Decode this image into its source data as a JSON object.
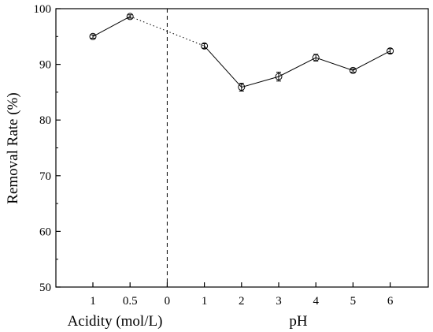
{
  "chart_data": {
    "type": "line",
    "title": "",
    "ylabel": "Removal Rate (%)",
    "ylim": [
      50,
      100
    ],
    "yticks": [
      "50",
      "60",
      "70",
      "80",
      "90",
      "100"
    ],
    "grid": false,
    "x_groups": [
      {
        "label": "Acidity (mol/L)",
        "ticks": [
          "1",
          "0.5"
        ]
      },
      {
        "label": "pH",
        "ticks": [
          "0",
          "1",
          "2",
          "3",
          "4",
          "5",
          "6"
        ]
      }
    ],
    "series": [
      {
        "group": "Acidity (mol/L)",
        "points": [
          {
            "x": "1",
            "y": 95.0,
            "err": 0.3
          },
          {
            "x": "0.5",
            "y": 98.6,
            "err": 0.3
          }
        ]
      },
      {
        "group": "pH",
        "points": [
          {
            "x": "1",
            "y": 93.3,
            "err": 0.4
          },
          {
            "x": "2",
            "y": 85.9,
            "err": 0.7
          },
          {
            "x": "3",
            "y": 87.8,
            "err": 0.8
          },
          {
            "x": "4",
            "y": 91.2,
            "err": 0.6
          },
          {
            "x": "5",
            "y": 88.9,
            "err": 0.3
          },
          {
            "x": "6",
            "y": 92.4,
            "err": 0.4
          }
        ]
      }
    ],
    "connector": {
      "style": "dotted",
      "from": {
        "x": "0.5",
        "y": 98.6
      },
      "to": {
        "x": "1",
        "y": 93.3
      }
    },
    "divider": {
      "style": "dashed",
      "at": "0"
    }
  }
}
